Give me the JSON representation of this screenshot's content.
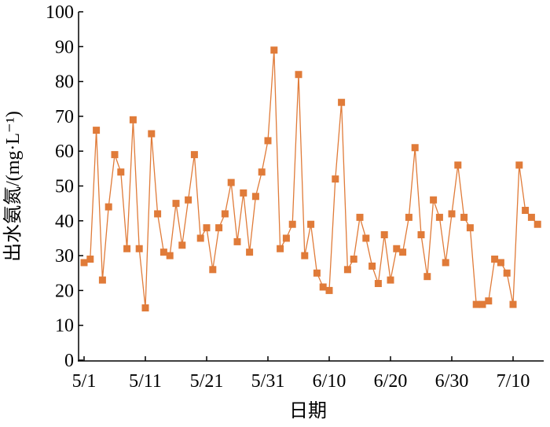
{
  "chart_data": {
    "type": "line",
    "x_label": "日期",
    "y_label": "出水氨氮/(mg·L⁻¹)",
    "categories": [
      "5/1",
      null,
      null,
      null,
      null,
      null,
      null,
      null,
      null,
      null,
      "5/11",
      null,
      null,
      null,
      null,
      null,
      null,
      null,
      null,
      null,
      "5/21",
      null,
      null,
      null,
      null,
      null,
      null,
      null,
      null,
      null,
      "5/31",
      null,
      null,
      null,
      null,
      null,
      null,
      null,
      null,
      null,
      "6/10",
      null,
      null,
      null,
      null,
      null,
      null,
      null,
      null,
      null,
      "6/20",
      null,
      null,
      null,
      null,
      null,
      null,
      null,
      null,
      null,
      "6/30",
      null,
      null,
      null,
      null,
      null,
      null,
      null,
      null,
      null,
      "7/10",
      null,
      null,
      null,
      null
    ],
    "series": [
      {
        "color": "#e07b39",
        "values": [
          28,
          29,
          66,
          23,
          44,
          59,
          54,
          32,
          69,
          32,
          15,
          65,
          42,
          31,
          30,
          45,
          33,
          46,
          59,
          35,
          38,
          26,
          38,
          42,
          51,
          34,
          48,
          31,
          47,
          54,
          63,
          89,
          32,
          35,
          39,
          82,
          30,
          39,
          25,
          21,
          20,
          52,
          74,
          26,
          29,
          41,
          35,
          27,
          22,
          36,
          23,
          32,
          31,
          41,
          61,
          36,
          24,
          46,
          41,
          28,
          42,
          56,
          41,
          38,
          16,
          16,
          17,
          29,
          28,
          25,
          16,
          56,
          43,
          41,
          39
        ]
      }
    ],
    "ylim": [
      0,
      100
    ],
    "yticks": [
      0,
      10,
      20,
      30,
      40,
      50,
      60,
      70,
      80,
      90,
      100
    ]
  }
}
